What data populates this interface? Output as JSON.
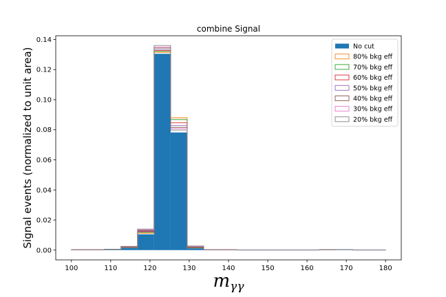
{
  "chart_data": {
    "type": "bar",
    "title": "combine Signal",
    "xlabel_main": "m",
    "xlabel_sub": "γγ",
    "ylabel": "Signal events (normalized to unit area)",
    "xlim": [
      96,
      184
    ],
    "ylim": [
      -0.0065,
      0.1425
    ],
    "xticks": [
      100,
      110,
      120,
      130,
      140,
      150,
      160,
      170,
      180
    ],
    "yticks": [
      0.0,
      0.02,
      0.04,
      0.06,
      0.08,
      0.1,
      0.12,
      0.14
    ],
    "ytick_labels": [
      "0.00",
      "0.02",
      "0.04",
      "0.06",
      "0.08",
      "0.10",
      "0.12",
      "0.14"
    ],
    "bin_edges": [
      100,
      104.21,
      108.42,
      112.63,
      116.84,
      121.05,
      125.26,
      129.47,
      133.68,
      137.89,
      142.11,
      146.32,
      150.53,
      154.74,
      158.95,
      163.16,
      167.37,
      171.58,
      175.79,
      180
    ],
    "legend_position": "top-right",
    "series": [
      {
        "name": "No cut",
        "color": "#1f77b4",
        "filled": true,
        "values": [
          0.0002,
          0.0002,
          0.0005,
          0.0015,
          0.0105,
          0.1305,
          0.0782,
          0.0012,
          0.0002,
          0.0002,
          0.0001,
          0.0001,
          0.0001,
          0.0001,
          0.0001,
          0.0003,
          0.0003,
          0.0001,
          0.0001
        ]
      },
      {
        "name": "80% bkg eff",
        "color": "#ff7f0e",
        "filled": false,
        "values": [
          0.0002,
          0.0002,
          0.0005,
          0.0018,
          0.0112,
          0.1315,
          0.088,
          0.0015,
          0.0002,
          0.0002,
          0.0001,
          0.0001,
          0.0001,
          0.0001,
          0.0001,
          0.0003,
          0.0004,
          0.0001,
          0.0001
        ]
      },
      {
        "name": "70% bkg eff",
        "color": "#2ca02c",
        "filled": false,
        "values": [
          0.0002,
          0.0002,
          0.0005,
          0.0019,
          0.0118,
          0.132,
          0.0868,
          0.0016,
          0.0002,
          0.0002,
          0.0001,
          0.0001,
          0.0001,
          0.0001,
          0.0001,
          0.0003,
          0.0004,
          0.0001,
          0.0001
        ]
      },
      {
        "name": "60% bkg eff",
        "color": "#d62728",
        "filled": false,
        "values": [
          0.0002,
          0.0002,
          0.0006,
          0.002,
          0.0122,
          0.1327,
          0.0846,
          0.0018,
          0.0002,
          0.0002,
          0.0001,
          0.0001,
          0.0001,
          0.0001,
          0.0001,
          0.0003,
          0.0004,
          0.0001,
          0.0001
        ]
      },
      {
        "name": "50% bkg eff",
        "color": "#9467bd",
        "filled": false,
        "values": [
          0.0002,
          0.0002,
          0.0006,
          0.0022,
          0.0127,
          0.1334,
          0.0829,
          0.002,
          0.0002,
          0.0002,
          0.0001,
          0.0001,
          0.0001,
          0.0001,
          0.0001,
          0.0003,
          0.0004,
          0.0001,
          0.0001
        ]
      },
      {
        "name": "40% bkg eff",
        "color": "#8c564b",
        "filled": false,
        "values": [
          0.0002,
          0.0002,
          0.0006,
          0.0023,
          0.0131,
          0.1343,
          0.0816,
          0.0022,
          0.0002,
          0.0002,
          0.0001,
          0.0001,
          0.0001,
          0.0001,
          0.0001,
          0.0003,
          0.0004,
          0.0001,
          0.0001
        ]
      },
      {
        "name": "30% bkg eff",
        "color": "#e377c2",
        "filled": false,
        "values": [
          0.0002,
          0.0002,
          0.0006,
          0.0024,
          0.0135,
          0.135,
          0.0807,
          0.0024,
          0.0002,
          0.0002,
          0.0001,
          0.0001,
          0.0001,
          0.0001,
          0.0001,
          0.0003,
          0.0004,
          0.0001,
          0.0001
        ]
      },
      {
        "name": "20% bkg eff",
        "color": "#7f7f7f",
        "filled": false,
        "values": [
          0.0002,
          0.0002,
          0.0006,
          0.0025,
          0.014,
          0.136,
          0.0798,
          0.0027,
          0.0002,
          0.0002,
          0.0001,
          0.0001,
          0.0001,
          0.0001,
          0.0001,
          0.0003,
          0.0004,
          0.0001,
          0.0001
        ]
      }
    ]
  }
}
